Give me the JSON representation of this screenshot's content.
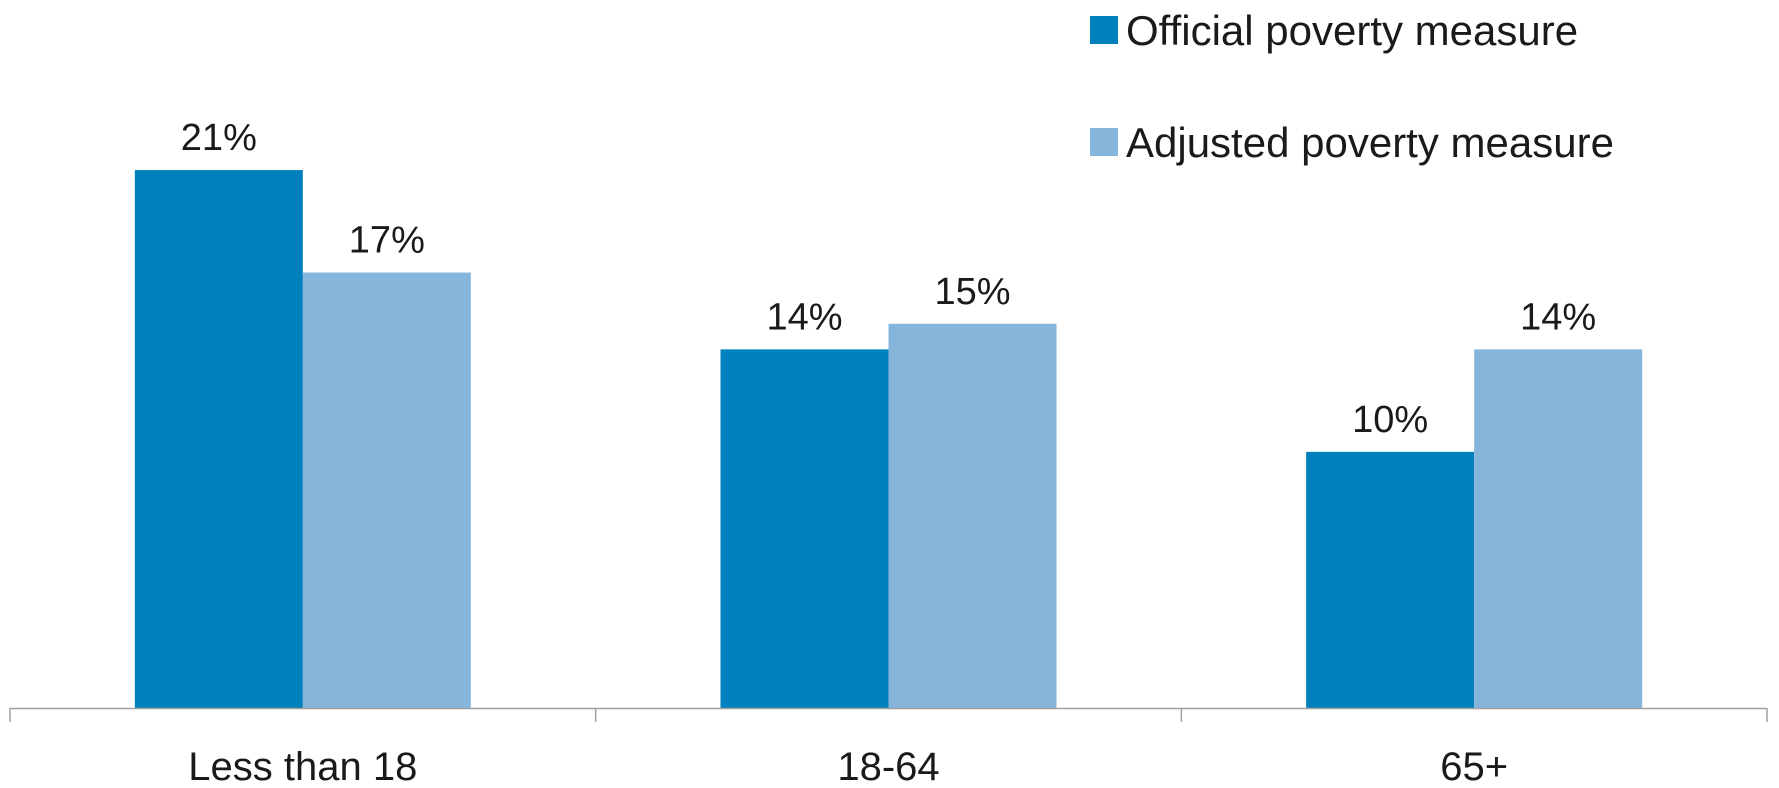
{
  "chart_data": {
    "type": "bar",
    "categories": [
      "Less than 18",
      "18-64",
      "65+"
    ],
    "series": [
      {
        "name": "Official poverty measure",
        "values": [
          21,
          14,
          10
        ],
        "labels": [
          "21%",
          "14%",
          "10%"
        ],
        "color": "#0080bc"
      },
      {
        "name": "Adjusted poverty measure",
        "values": [
          17,
          15,
          14
        ],
        "labels": [
          "17%",
          "15%",
          "14%"
        ],
        "color": "#86b5dc"
      }
    ],
    "ylim": [
      0,
      26
    ],
    "unit": "%",
    "grid": false,
    "legend_position": "top-right",
    "axis_color": "#a0a0a0"
  }
}
